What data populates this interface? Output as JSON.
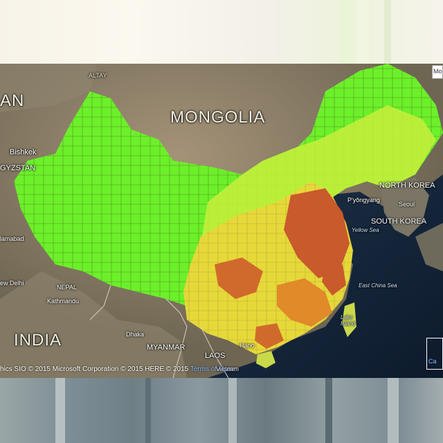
{
  "map": {
    "countries": {
      "mongolia": "MONGOLIA",
      "india": "INDIA",
      "kazakhstan_partial": "AN",
      "kyrgyzstan_partial": "GYZSTAN",
      "north_korea": "NORTH KOREA",
      "south_korea": "SOUTH KOREA",
      "nepal": "NEPAL",
      "myanmar": "MYANMAR",
      "laos": "LAOS",
      "vietnam_partial": "Vietnam"
    },
    "cities": {
      "bishkek": "Bishkek",
      "pyongyang": "P'yŏngyang",
      "seoul": "Seoul",
      "islamabad_partial": "lamabad",
      "new_delhi_partial": "ew Delhi",
      "kathmandu": "Kathmandu",
      "dhaka": "Dhaka",
      "hanoi_partial": "Hano",
      "altay": "ALTAY"
    },
    "water": {
      "yellow_sea": "Yellow Sea",
      "east_china_sea": "East China Sea",
      "lake_island": "Lake\nIsland"
    },
    "copyright": "hics SIO © 2015 Microsoft Corporation © 2015 HERE © 2015",
    "copyright_link": "Terms of Use",
    "mode_tab": "Mo",
    "corner_tab": "Ca"
  },
  "legend_colors": {
    "low": "#6cf02a",
    "mid_low": "#c8ee3c",
    "mid": "#e7d83a",
    "mid_high": "#e08a2a",
    "high": "#c85a2c"
  }
}
